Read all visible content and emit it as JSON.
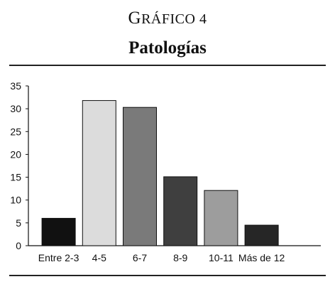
{
  "figure_label": {
    "cap": "G",
    "rest": "RÁFICO 4"
  },
  "chart_data": {
    "type": "bar",
    "title": "Patologías",
    "categories": [
      "Entre 2-3",
      "4-5",
      "6-7",
      "8-9",
      "10-11",
      "Más de 12"
    ],
    "values": [
      6,
      31.8,
      30.3,
      15.1,
      12.1,
      4.5
    ],
    "colors": [
      "#111111",
      "#dcdcdc",
      "#7a7a7a",
      "#3f3f3f",
      "#9d9d9d",
      "#262626"
    ],
    "ylim": [
      0,
      35
    ],
    "yticks": [
      "0",
      "5",
      "10",
      "15",
      "20",
      "25",
      "30",
      "35"
    ],
    "xlabel": "",
    "ylabel": "",
    "grid": false
  }
}
